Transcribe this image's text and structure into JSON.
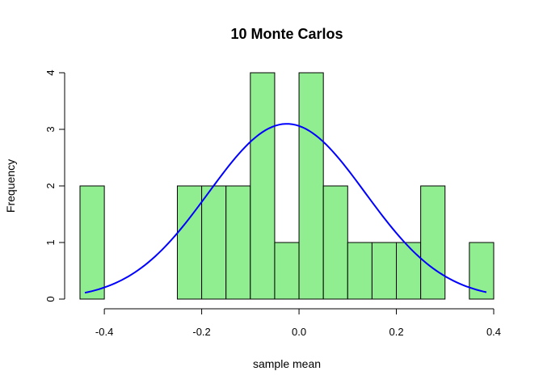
{
  "chart_data": {
    "type": "bar",
    "title": "10 Monte Carlos",
    "xlabel": "sample mean",
    "ylabel": "Frequency",
    "bin_width": 0.05,
    "bins": [
      {
        "start": -0.45,
        "end": -0.4,
        "count": 2
      },
      {
        "start": -0.4,
        "end": -0.35,
        "count": 0
      },
      {
        "start": -0.35,
        "end": -0.3,
        "count": 0
      },
      {
        "start": -0.3,
        "end": -0.25,
        "count": 0
      },
      {
        "start": -0.25,
        "end": -0.2,
        "count": 2
      },
      {
        "start": -0.2,
        "end": -0.15,
        "count": 2
      },
      {
        "start": -0.15,
        "end": -0.1,
        "count": 2
      },
      {
        "start": -0.1,
        "end": -0.05,
        "count": 4
      },
      {
        "start": -0.05,
        "end": 0.0,
        "count": 1
      },
      {
        "start": 0.0,
        "end": 0.05,
        "count": 4
      },
      {
        "start": 0.05,
        "end": 0.1,
        "count": 2
      },
      {
        "start": 0.1,
        "end": 0.15,
        "count": 1
      },
      {
        "start": 0.15,
        "end": 0.2,
        "count": 1
      },
      {
        "start": 0.2,
        "end": 0.25,
        "count": 1
      },
      {
        "start": 0.25,
        "end": 0.3,
        "count": 2
      },
      {
        "start": 0.3,
        "end": 0.35,
        "count": 0
      },
      {
        "start": 0.35,
        "end": 0.4,
        "count": 1
      }
    ],
    "density_curve": {
      "mean": -0.025,
      "sd": 0.161,
      "x_from": -0.44,
      "x_to": 0.385,
      "color": "#0000ff"
    },
    "xlim": [
      -0.45,
      0.4
    ],
    "ylim": [
      0,
      4
    ],
    "x_ticks": [
      -0.4,
      -0.2,
      0.0,
      0.2,
      0.4
    ],
    "x_tick_labels": [
      "-0.4",
      "-0.2",
      "0.0",
      "0.2",
      "0.4"
    ],
    "y_ticks": [
      0,
      1,
      2,
      3,
      4
    ],
    "y_tick_labels": [
      "0",
      "1",
      "2",
      "3",
      "4"
    ],
    "bar_fill": "#90ee90",
    "bar_stroke": "#000000",
    "grid": false
  }
}
